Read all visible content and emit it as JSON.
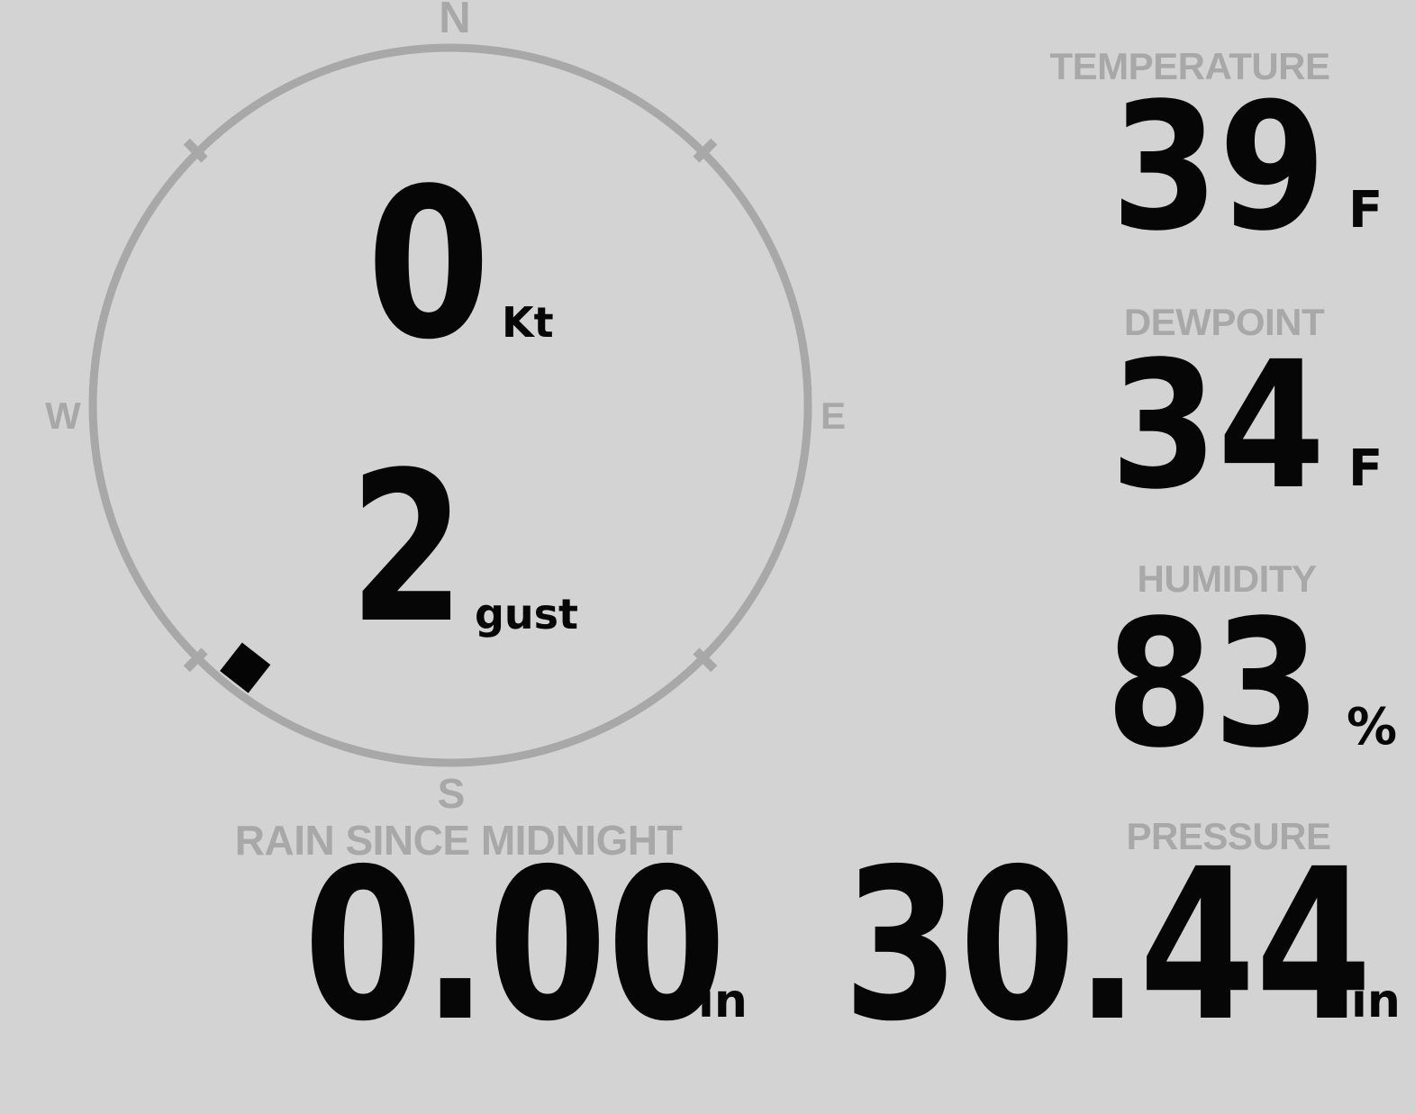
{
  "theme": {
    "background": "#d3d3d3",
    "muted_gray": "#a8a8a8",
    "text_black": "#060606"
  },
  "compass": {
    "cardinals": {
      "north": "N",
      "east": "E",
      "south": "S",
      "west": "W"
    },
    "wind_speed": {
      "value": "0",
      "unit": "Kt"
    },
    "wind_gust": {
      "value": "2",
      "unit": "gust"
    },
    "direction_degrees": 218
  },
  "stats": {
    "temperature": {
      "label": "TEMPERATURE",
      "value": "39",
      "unit": "F"
    },
    "dewpoint": {
      "label": "DEWPOINT",
      "value": "34",
      "unit": "F"
    },
    "humidity": {
      "label": "HUMIDITY",
      "value": "83",
      "unit": "%"
    },
    "rain": {
      "label": "RAIN SINCE MIDNIGHT",
      "value": "0.00",
      "unit": "in"
    },
    "pressure": {
      "label": "PRESSURE",
      "value": "30.44",
      "unit": "in"
    }
  }
}
